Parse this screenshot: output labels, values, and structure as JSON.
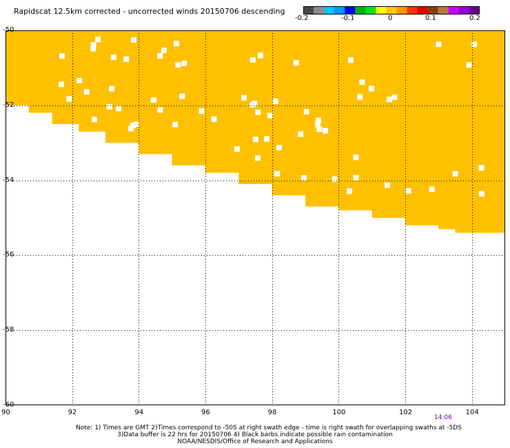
{
  "title": "Rapidscat 12.5km corrected - uncorrected winds 20150706 descending",
  "colorbar": {
    "colors": [
      "#484848",
      "#8c8c8c",
      "#00c8ff",
      "#0096ff",
      "#0000e6",
      "#00b400",
      "#00e600",
      "#ffff00",
      "#ffc800",
      "#ff9600",
      "#ff3200",
      "#e60000",
      "#8c3c14",
      "#b4783c",
      "#c800ff",
      "#9600d2",
      "#640096"
    ],
    "labels": [
      "-0.2",
      "-0.1",
      "0",
      "0.1",
      "0.2"
    ]
  },
  "map": {
    "lon_range": [
      90,
      105
    ],
    "lat_range": [
      -60,
      -50
    ],
    "x_ticks": [
      "90",
      "92",
      "94",
      "96",
      "98",
      "100",
      "102",
      "104"
    ],
    "y_ticks": [
      "-50",
      "-52",
      "-54",
      "-56",
      "-58",
      "-60"
    ],
    "fill_color": "#ffc000",
    "swath_edge": [
      [
        90.0,
        -51.7
      ],
      [
        90.7,
        -52.0
      ],
      [
        91.4,
        -52.2
      ],
      [
        92.2,
        -52.5
      ],
      [
        93.0,
        -52.7
      ],
      [
        94.0,
        -53.0
      ],
      [
        95.0,
        -53.3
      ],
      [
        96.0,
        -53.6
      ],
      [
        97.0,
        -53.8
      ],
      [
        98.0,
        -54.1
      ],
      [
        99.0,
        -54.4
      ],
      [
        100.0,
        -54.7
      ],
      [
        101.0,
        -54.8
      ],
      [
        102.0,
        -55.0
      ],
      [
        103.0,
        -55.2
      ],
      [
        103.5,
        -55.3
      ],
      [
        104.0,
        -55.4
      ],
      [
        105.0,
        -55.4
      ]
    ],
    "grid_style": "dotted"
  },
  "time_label": "14:06",
  "notes": {
    "line1": "Note: 1) Times are GMT 2)Times correspond to -50S at right swath edge - time is right swath for overlapping swaths at -5DS",
    "line2": "3)Data buffer is 22 hrs for 20150706 4) Black barbs indicate possible rain contamination",
    "line3": "NOAA/NESDIS/Office of Research and Applications"
  }
}
